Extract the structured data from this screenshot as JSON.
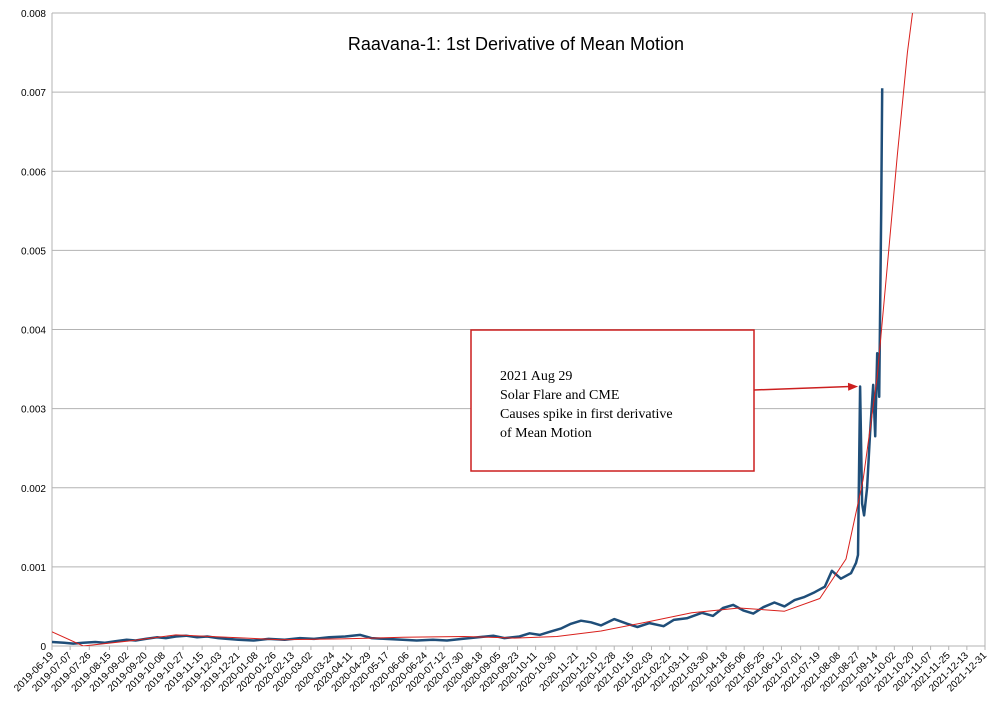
{
  "chart_data": {
    "type": "line",
    "title": "Raavana-1: 1st Derivative of Mean Motion",
    "xlabel": "",
    "ylabel": "",
    "grid": true,
    "legend": "none",
    "x_axis_type": "date",
    "xlim": [
      "2019-06-19",
      "2021-12-31"
    ],
    "ylim": [
      0,
      0.008
    ],
    "y_ticks": [
      "0",
      "0.001",
      "0.002",
      "0.003",
      "0.004",
      "0.005",
      "0.006",
      "0.007",
      "0.008"
    ],
    "x_ticks": [
      "2019-06-19",
      "2019-07-07",
      "2019-07-26",
      "2019-08-15",
      "2019-09-02",
      "2019-09-20",
      "2019-10-08",
      "2019-10-27",
      "2019-11-15",
      "2019-12-03",
      "2019-12-21",
      "2020-01-08",
      "2020-01-26",
      "2020-02-13",
      "2020-03-02",
      "2020-03-24",
      "2020-04-11",
      "2020-04-29",
      "2020-05-17",
      "2020-06-06",
      "2020-06-24",
      "2020-07-12",
      "2020-07-30",
      "2020-08-18",
      "2020-09-05",
      "2020-09-23",
      "2020-10-11",
      "2020-10-30",
      "2020-11-21",
      "2020-12-10",
      "2020-12-28",
      "2021-01-15",
      "2021-02-03",
      "2021-02-21",
      "2021-03-11",
      "2021-03-30",
      "2021-04-18",
      "2021-05-06",
      "2021-05-25",
      "2021-06-12",
      "2021-07-01",
      "2021-07-19",
      "2021-08-08",
      "2021-08-27",
      "2021-09-14",
      "2021-10-02",
      "2021-10-20",
      "2021-11-07",
      "2021-11-25",
      "2021-12-13",
      "2021-12-31"
    ],
    "series": [
      {
        "color": "#1f4e79",
        "points": [
          [
            "2019-06-19",
            5e-05
          ],
          [
            "2019-07-01",
            4e-05
          ],
          [
            "2019-07-10",
            3e-05
          ],
          [
            "2019-07-20",
            4e-05
          ],
          [
            "2019-08-01",
            5e-05
          ],
          [
            "2019-08-10",
            4e-05
          ],
          [
            "2019-08-20",
            6e-05
          ],
          [
            "2019-09-01",
            8e-05
          ],
          [
            "2019-09-10",
            7e-05
          ],
          [
            "2019-09-20",
            9e-05
          ],
          [
            "2019-10-01",
            0.00011
          ],
          [
            "2019-10-10",
            0.0001
          ],
          [
            "2019-10-20",
            0.00012
          ],
          [
            "2019-10-30",
            0.00013
          ],
          [
            "2019-11-10",
            0.00011
          ],
          [
            "2019-11-20",
            0.00012
          ],
          [
            "2019-12-01",
            0.0001
          ],
          [
            "2019-12-10",
            9e-05
          ],
          [
            "2019-12-21",
            8e-05
          ],
          [
            "2020-01-05",
            7e-05
          ],
          [
            "2020-01-20",
            9e-05
          ],
          [
            "2020-02-05",
            8e-05
          ],
          [
            "2020-02-20",
            0.0001
          ],
          [
            "2020-03-05",
            9e-05
          ],
          [
            "2020-03-20",
            0.00011
          ],
          [
            "2020-04-05",
            0.00012
          ],
          [
            "2020-04-20",
            0.00014
          ],
          [
            "2020-05-01",
            0.0001
          ],
          [
            "2020-05-15",
            9e-05
          ],
          [
            "2020-06-01",
            8e-05
          ],
          [
            "2020-06-15",
            7e-05
          ],
          [
            "2020-07-01",
            8e-05
          ],
          [
            "2020-07-15",
            7e-05
          ],
          [
            "2020-07-30",
            9e-05
          ],
          [
            "2020-08-15",
            0.00011
          ],
          [
            "2020-08-30",
            0.00013
          ],
          [
            "2020-09-10",
            0.0001
          ],
          [
            "2020-09-25",
            0.00012
          ],
          [
            "2020-10-05",
            0.00016
          ],
          [
            "2020-10-15",
            0.00014
          ],
          [
            "2020-10-25",
            0.00018
          ],
          [
            "2020-11-05",
            0.00022
          ],
          [
            "2020-11-15",
            0.00028
          ],
          [
            "2020-11-25",
            0.00032
          ],
          [
            "2020-12-05",
            0.0003
          ],
          [
            "2020-12-15",
            0.00026
          ],
          [
            "2020-12-28",
            0.00034
          ],
          [
            "2021-01-10",
            0.00028
          ],
          [
            "2021-01-20",
            0.00024
          ],
          [
            "2021-02-01",
            0.00029
          ],
          [
            "2021-02-15",
            0.00025
          ],
          [
            "2021-02-25",
            0.00033
          ],
          [
            "2021-03-10",
            0.00035
          ],
          [
            "2021-03-25",
            0.00042
          ],
          [
            "2021-04-05",
            0.00038
          ],
          [
            "2021-04-15",
            0.00048
          ],
          [
            "2021-04-25",
            0.00052
          ],
          [
            "2021-05-05",
            0.00045
          ],
          [
            "2021-05-15",
            0.00041
          ],
          [
            "2021-05-25",
            0.00049
          ],
          [
            "2021-06-05",
            0.00055
          ],
          [
            "2021-06-15",
            0.0005
          ],
          [
            "2021-06-25",
            0.00058
          ],
          [
            "2021-07-05",
            0.00062
          ],
          [
            "2021-07-15",
            0.00068
          ],
          [
            "2021-07-25",
            0.00075
          ],
          [
            "2021-08-01",
            0.00095
          ],
          [
            "2021-08-10",
            0.00085
          ],
          [
            "2021-08-20",
            0.00092
          ],
          [
            "2021-08-25",
            0.00105
          ],
          [
            "2021-08-27",
            0.00115
          ],
          [
            "2021-08-29",
            0.00328
          ],
          [
            "2021-08-31",
            0.0018
          ],
          [
            "2021-09-02",
            0.00165
          ],
          [
            "2021-09-05",
            0.002
          ],
          [
            "2021-09-08",
            0.0027
          ],
          [
            "2021-09-11",
            0.0033
          ],
          [
            "2021-09-13",
            0.00265
          ],
          [
            "2021-09-15",
            0.0037
          ],
          [
            "2021-09-17",
            0.00315
          ],
          [
            "2021-09-19",
            0.0055
          ],
          [
            "2021-09-20",
            0.00705
          ]
        ]
      },
      {
        "color": "#d9201c",
        "points": [
          [
            "2019-06-19",
            0.00018
          ],
          [
            "2019-07-20",
            0.0
          ],
          [
            "2019-09-01",
            6e-05
          ],
          [
            "2019-10-20",
            0.00014
          ],
          [
            "2019-12-10",
            0.00011
          ],
          [
            "2020-02-01",
            8e-05
          ],
          [
            "2020-04-01",
            9e-05
          ],
          [
            "2020-06-01",
            0.00011
          ],
          [
            "2020-08-01",
            0.00012
          ],
          [
            "2020-09-20",
            0.0001
          ],
          [
            "2020-11-01",
            0.00012
          ],
          [
            "2020-12-15",
            0.00019
          ],
          [
            "2021-02-01",
            0.00031
          ],
          [
            "2021-03-15",
            0.00042
          ],
          [
            "2021-05-01",
            0.00048
          ],
          [
            "2021-06-15",
            0.00044
          ],
          [
            "2021-07-20",
            0.0006
          ],
          [
            "2021-08-15",
            0.0011
          ],
          [
            "2021-09-01",
            0.0021
          ],
          [
            "2021-09-15",
            0.0034
          ],
          [
            "2021-09-25",
            0.0048
          ],
          [
            "2021-10-05",
            0.0062
          ],
          [
            "2021-10-15",
            0.0075
          ],
          [
            "2021-10-20",
            0.008
          ]
        ]
      }
    ],
    "annotations": [
      {
        "lines": [
          "2021 Aug 29",
          "Solar Flare and CME",
          "Causes spike in first derivative",
          "of Mean Motion"
        ],
        "target": [
          "2021-08-29",
          0.00328
        ],
        "box_color": "#cc1f1f",
        "arrow_color": "#cc1f1f"
      }
    ]
  }
}
